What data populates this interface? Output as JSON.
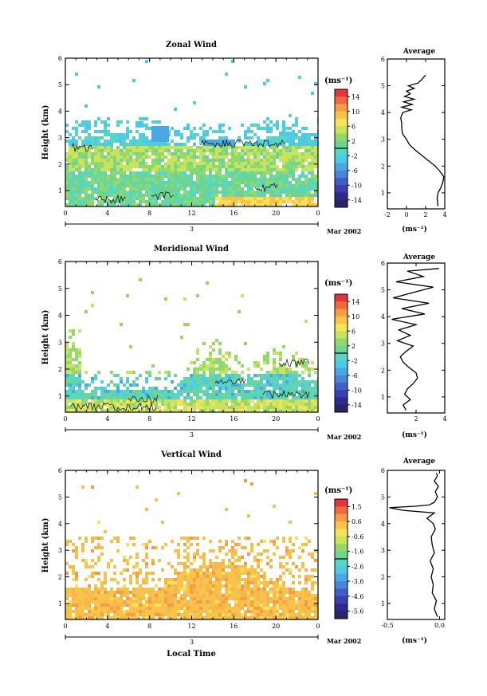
{
  "chart_data": [
    {
      "type": "heatmap",
      "title": "Zonal Wind",
      "ylabel": "Height (km)",
      "xticks": [
        "0",
        "4",
        "8",
        "12",
        "16",
        "20",
        "0"
      ],
      "yticks": [
        "1",
        "2",
        "3",
        "4",
        "5",
        "6"
      ],
      "day_label": "3",
      "date_label": "Mar 2002",
      "xlim": [
        0,
        24
      ],
      "ylim": [
        0.4,
        6
      ],
      "colorbar": {
        "unit": "(ms⁻¹)",
        "ticks": [
          "14",
          "10",
          "6",
          "2",
          "-2",
          "-6",
          "-10",
          "-14"
        ],
        "min": -16,
        "max": 16
      },
      "average": {
        "title": "Average",
        "xlabel": "(ms⁻¹)",
        "xticks": [
          "-2",
          "0",
          "2",
          "4"
        ],
        "xlim": [
          -2,
          4
        ],
        "yticks": [
          "1",
          "2",
          "3",
          "4",
          "5",
          "6"
        ],
        "height": [
          0.5,
          0.8,
          1.0,
          1.2,
          1.4,
          1.6,
          1.8,
          2.0,
          2.2,
          2.4,
          2.6,
          2.8,
          3.0,
          3.1,
          3.2,
          3.4,
          3.6,
          3.8,
          4.0,
          4.1,
          4.2,
          4.3,
          4.4,
          4.5,
          4.6,
          4.7,
          4.8,
          4.9,
          5.0,
          5.1,
          5.2,
          5.4
        ],
        "speed": [
          3.3,
          3.2,
          3.3,
          3.6,
          3.8,
          3.9,
          3.5,
          3.0,
          2.3,
          1.6,
          0.9,
          0.3,
          0.0,
          -0.2,
          -0.4,
          -0.5,
          -0.5,
          -0.6,
          -0.4,
          0.5,
          -0.5,
          0.6,
          -0.3,
          0.8,
          -0.2,
          0.4,
          0.0,
          0.8,
          0.2,
          1.2,
          1.5,
          2.0
        ]
      }
    },
    {
      "type": "heatmap",
      "title": "Meridional Wind",
      "ylabel": "Height (km)",
      "xticks": [
        "0",
        "4",
        "8",
        "12",
        "16",
        "20",
        "0"
      ],
      "yticks": [
        "1",
        "2",
        "3",
        "4",
        "5",
        "6"
      ],
      "day_label": "3",
      "date_label": "Mar 2002",
      "xlim": [
        0,
        24
      ],
      "ylim": [
        0.4,
        6
      ],
      "colorbar": {
        "unit": "(ms⁻¹)",
        "ticks": [
          "14",
          "10",
          "6",
          "2",
          "-2",
          "-6",
          "-10",
          "-14"
        ],
        "min": -16,
        "max": 16
      },
      "average": {
        "title": "Average",
        "xlabel": "(ms⁻¹)",
        "xticks": [
          "2",
          "4"
        ],
        "xlim": [
          0,
          4
        ],
        "yticks": [
          "1",
          "2",
          "3",
          "4",
          "5",
          "6"
        ],
        "height": [
          0.5,
          0.7,
          0.9,
          1.1,
          1.3,
          1.5,
          1.7,
          1.9,
          2.1,
          2.3,
          2.5,
          2.7,
          2.9,
          3.1,
          3.3,
          3.5,
          3.7,
          3.9,
          4.1,
          4.3,
          4.5,
          4.7,
          4.9,
          5.1,
          5.3,
          5.5,
          5.7,
          5.8
        ],
        "speed": [
          1.3,
          1.1,
          1.6,
          1.2,
          1.4,
          1.8,
          2.1,
          2.0,
          1.5,
          1.1,
          0.9,
          1.3,
          1.8,
          0.7,
          1.6,
          0.8,
          2.0,
          0.3,
          2.6,
          1.0,
          2.9,
          0.4,
          1.8,
          3.2,
          0.6,
          2.5,
          1.4,
          3.6
        ]
      }
    },
    {
      "type": "heatmap",
      "title": "Vertical Wind",
      "ylabel": "Height (km)",
      "xlabel": "Local Time",
      "xticks": [
        "0",
        "4",
        "8",
        "12",
        "16",
        "20",
        "0"
      ],
      "yticks": [
        "1",
        "2",
        "3",
        "4",
        "5",
        "6"
      ],
      "day_label": "3",
      "date_label": "Mar 2002",
      "xlim": [
        0,
        24
      ],
      "ylim": [
        0.4,
        6
      ],
      "colorbar": {
        "unit": "(ms⁻¹)",
        "ticks": [
          "1.5",
          "0.6",
          "-0.6",
          "-1.6",
          "-2.6",
          "-3.6",
          "-4.6",
          "-5.6"
        ],
        "min": -6.4,
        "max": 2.0
      },
      "average": {
        "title": "Average",
        "xlabel": "(ms⁻¹)",
        "xticks": [
          "-0.5",
          "0.0"
        ],
        "xlim": [
          -0.5,
          0.05
        ],
        "yticks": [
          "1",
          "2",
          "3",
          "4",
          "5",
          "6"
        ],
        "height": [
          0.5,
          0.8,
          1.1,
          1.4,
          1.7,
          2.0,
          2.3,
          2.6,
          2.9,
          3.2,
          3.5,
          3.8,
          4.0,
          4.2,
          4.4,
          4.5,
          4.6,
          4.65,
          4.7,
          4.8,
          5.0,
          5.2,
          5.4,
          5.6,
          5.8,
          5.9
        ],
        "speed": [
          -0.02,
          -0.05,
          -0.03,
          -0.07,
          -0.06,
          -0.08,
          -0.06,
          -0.09,
          -0.05,
          -0.07,
          -0.08,
          -0.04,
          -0.06,
          -0.12,
          -0.05,
          -0.35,
          -0.48,
          -0.25,
          -0.1,
          -0.05,
          -0.02,
          -0.04,
          -0.01,
          -0.05,
          -0.02,
          -0.03
        ]
      }
    }
  ]
}
